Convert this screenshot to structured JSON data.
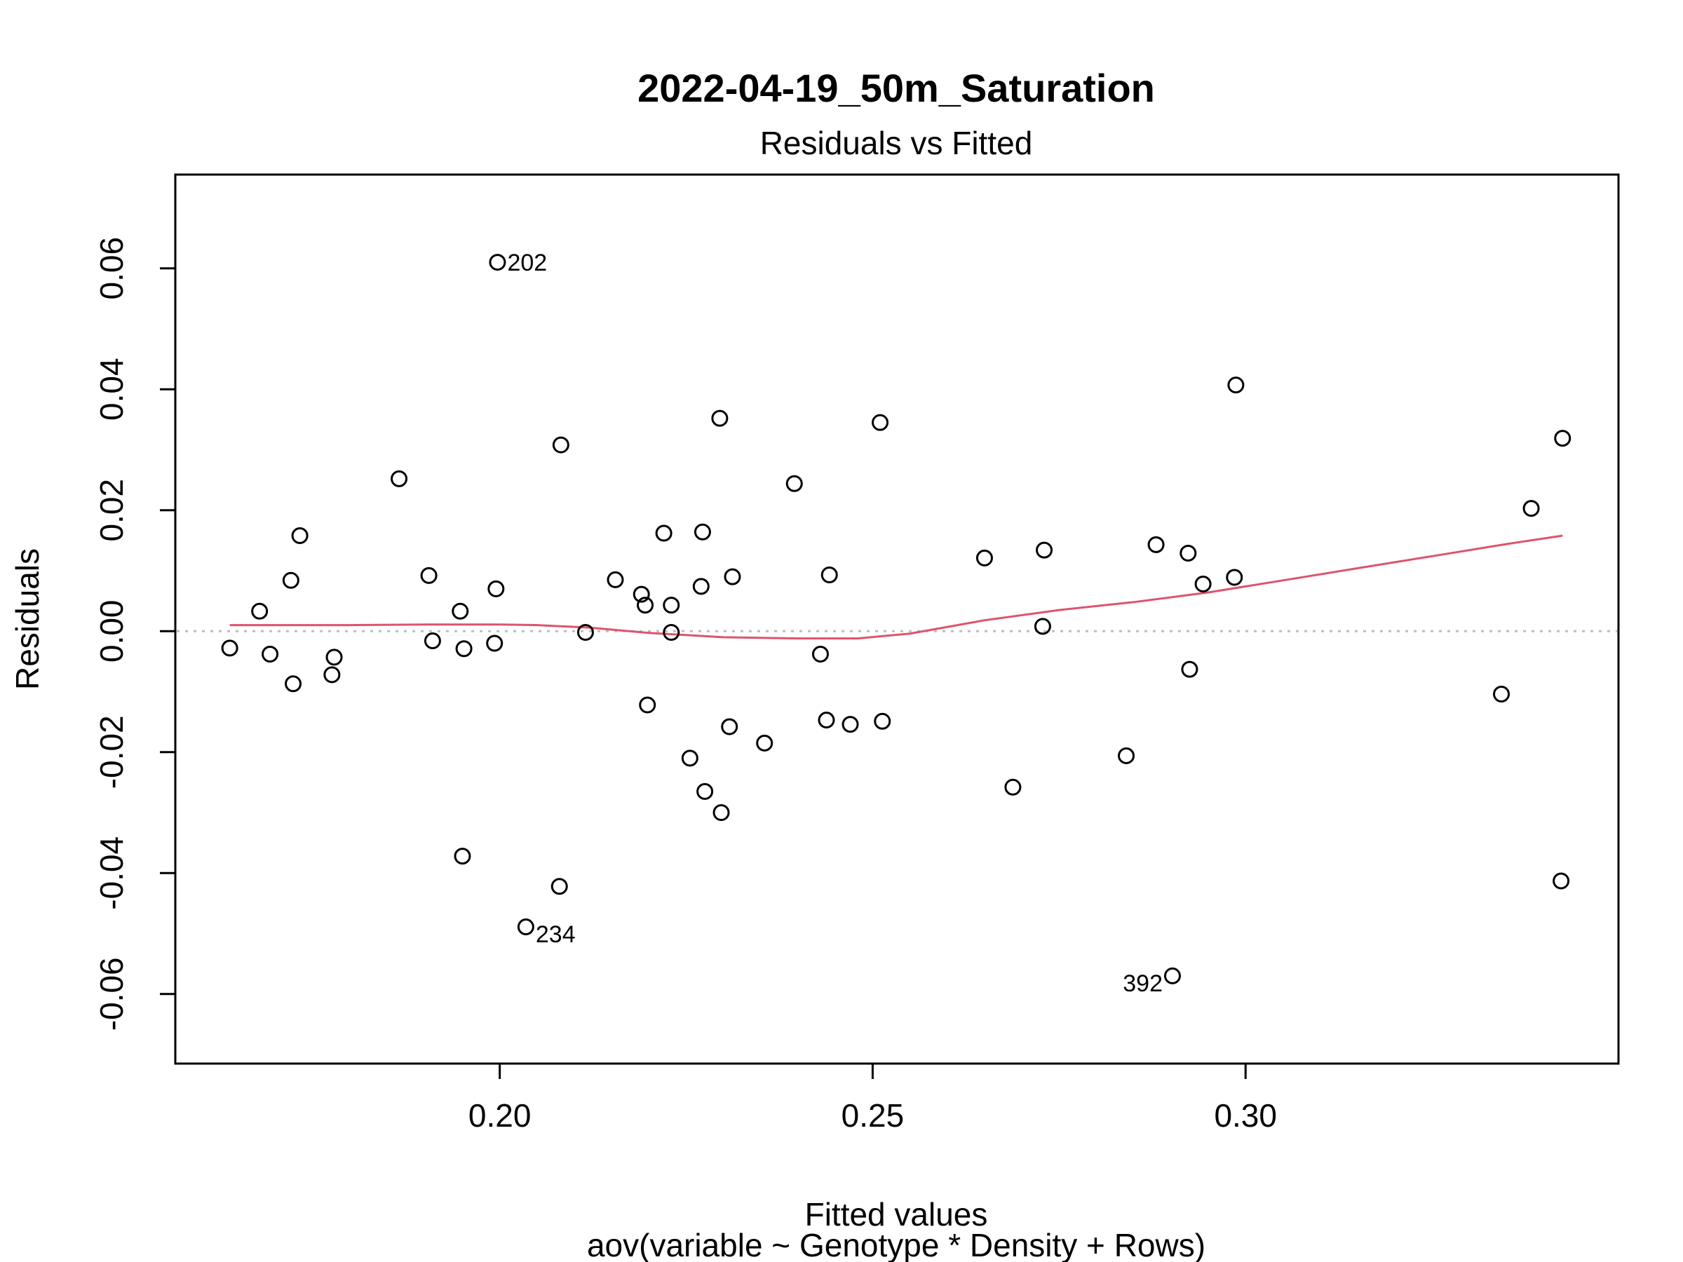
{
  "chart_data": {
    "type": "scatter",
    "title": "2022-04-19_50m_Saturation",
    "subtitle": "Residuals vs Fitted",
    "xlabel": "Fitted values",
    "xsublabel": "aov(variable ~ Genotype * Density + Rows)",
    "ylabel": "Residuals",
    "xlim": [
      0.1565,
      0.35
    ],
    "ylim": [
      -0.0715,
      0.0755
    ],
    "xticks": [
      "0.20",
      "0.25",
      "0.30"
    ],
    "yticks": [
      "-0.06",
      "-0.04",
      "-0.02",
      "0.00",
      "0.02",
      "0.04",
      "0.06"
    ],
    "reference_line": {
      "y": 0.0,
      "style": "dotted",
      "color": "#bebebe"
    },
    "points_color": "#000000",
    "smooth_color": "#df536b",
    "points": [
      {
        "x": 0.1638,
        "y": -0.0028
      },
      {
        "x": 0.1678,
        "y": 0.0033
      },
      {
        "x": 0.1692,
        "y": -0.0038
      },
      {
        "x": 0.172,
        "y": 0.0084
      },
      {
        "x": 0.1723,
        "y": -0.0087
      },
      {
        "x": 0.1732,
        "y": 0.0158
      },
      {
        "x": 0.1775,
        "y": -0.0072
      },
      {
        "x": 0.1778,
        "y": -0.0043
      },
      {
        "x": 0.1865,
        "y": 0.0252
      },
      {
        "x": 0.1905,
        "y": 0.0092
      },
      {
        "x": 0.191,
        "y": -0.0016
      },
      {
        "x": 0.1947,
        "y": 0.0033
      },
      {
        "x": 0.195,
        "y": -0.0372
      },
      {
        "x": 0.1952,
        "y": -0.0029
      },
      {
        "x": 0.1995,
        "y": 0.007
      },
      {
        "x": 0.1993,
        "y": -0.002
      },
      {
        "x": 0.1997,
        "y": 0.061,
        "label": "202"
      },
      {
        "x": 0.2035,
        "y": -0.0489,
        "label": "234"
      },
      {
        "x": 0.208,
        "y": -0.0422
      },
      {
        "x": 0.2082,
        "y": 0.0308
      },
      {
        "x": 0.2115,
        "y": -0.0002
      },
      {
        "x": 0.2155,
        "y": 0.0085
      },
      {
        "x": 0.219,
        "y": 0.0061
      },
      {
        "x": 0.2195,
        "y": 0.0043
      },
      {
        "x": 0.2198,
        "y": -0.0122
      },
      {
        "x": 0.222,
        "y": 0.0162
      },
      {
        "x": 0.223,
        "y": 0.0043
      },
      {
        "x": 0.223,
        "y": -0.0002
      },
      {
        "x": 0.2255,
        "y": -0.021
      },
      {
        "x": 0.227,
        "y": 0.0074
      },
      {
        "x": 0.2272,
        "y": 0.0164
      },
      {
        "x": 0.2275,
        "y": -0.0265
      },
      {
        "x": 0.2295,
        "y": 0.0352
      },
      {
        "x": 0.2297,
        "y": -0.03
      },
      {
        "x": 0.2308,
        "y": -0.0158
      },
      {
        "x": 0.2312,
        "y": 0.009
      },
      {
        "x": 0.2355,
        "y": -0.0185
      },
      {
        "x": 0.2395,
        "y": 0.0244
      },
      {
        "x": 0.243,
        "y": -0.0038
      },
      {
        "x": 0.2438,
        "y": -0.0147
      },
      {
        "x": 0.2442,
        "y": 0.0093
      },
      {
        "x": 0.247,
        "y": -0.0154
      },
      {
        "x": 0.251,
        "y": 0.0345
      },
      {
        "x": 0.2513,
        "y": -0.0149
      },
      {
        "x": 0.265,
        "y": 0.0121
      },
      {
        "x": 0.2688,
        "y": -0.0258
      },
      {
        "x": 0.2728,
        "y": 0.0008
      },
      {
        "x": 0.273,
        "y": 0.0134
      },
      {
        "x": 0.284,
        "y": -0.0206
      },
      {
        "x": 0.288,
        "y": 0.0143
      },
      {
        "x": 0.2902,
        "y": -0.057,
        "label": "392"
      },
      {
        "x": 0.2923,
        "y": 0.0129
      },
      {
        "x": 0.2925,
        "y": -0.0063
      },
      {
        "x": 0.2943,
        "y": 0.0078
      },
      {
        "x": 0.2985,
        "y": 0.0089
      },
      {
        "x": 0.2987,
        "y": 0.0407
      },
      {
        "x": 0.3343,
        "y": -0.0104
      },
      {
        "x": 0.3383,
        "y": 0.0203
      },
      {
        "x": 0.3425,
        "y": 0.0319
      },
      {
        "x": 0.3423,
        "y": -0.0413
      }
    ],
    "smooth_line": [
      {
        "x": 0.1638,
        "y": 0.001
      },
      {
        "x": 0.18,
        "y": 0.001
      },
      {
        "x": 0.19,
        "y": 0.0011
      },
      {
        "x": 0.2,
        "y": 0.0011
      },
      {
        "x": 0.205,
        "y": 0.001
      },
      {
        "x": 0.212,
        "y": 0.0006
      },
      {
        "x": 0.22,
        "y": -0.0003
      },
      {
        "x": 0.23,
        "y": -0.001
      },
      {
        "x": 0.24,
        "y": -0.0012
      },
      {
        "x": 0.248,
        "y": -0.0012
      },
      {
        "x": 0.255,
        "y": -0.0004
      },
      {
        "x": 0.265,
        "y": 0.0018
      },
      {
        "x": 0.275,
        "y": 0.0035
      },
      {
        "x": 0.285,
        "y": 0.0048
      },
      {
        "x": 0.295,
        "y": 0.0064
      },
      {
        "x": 0.305,
        "y": 0.0084
      },
      {
        "x": 0.315,
        "y": 0.0104
      },
      {
        "x": 0.325,
        "y": 0.0124
      },
      {
        "x": 0.335,
        "y": 0.0144
      },
      {
        "x": 0.3425,
        "y": 0.0158
      }
    ]
  }
}
